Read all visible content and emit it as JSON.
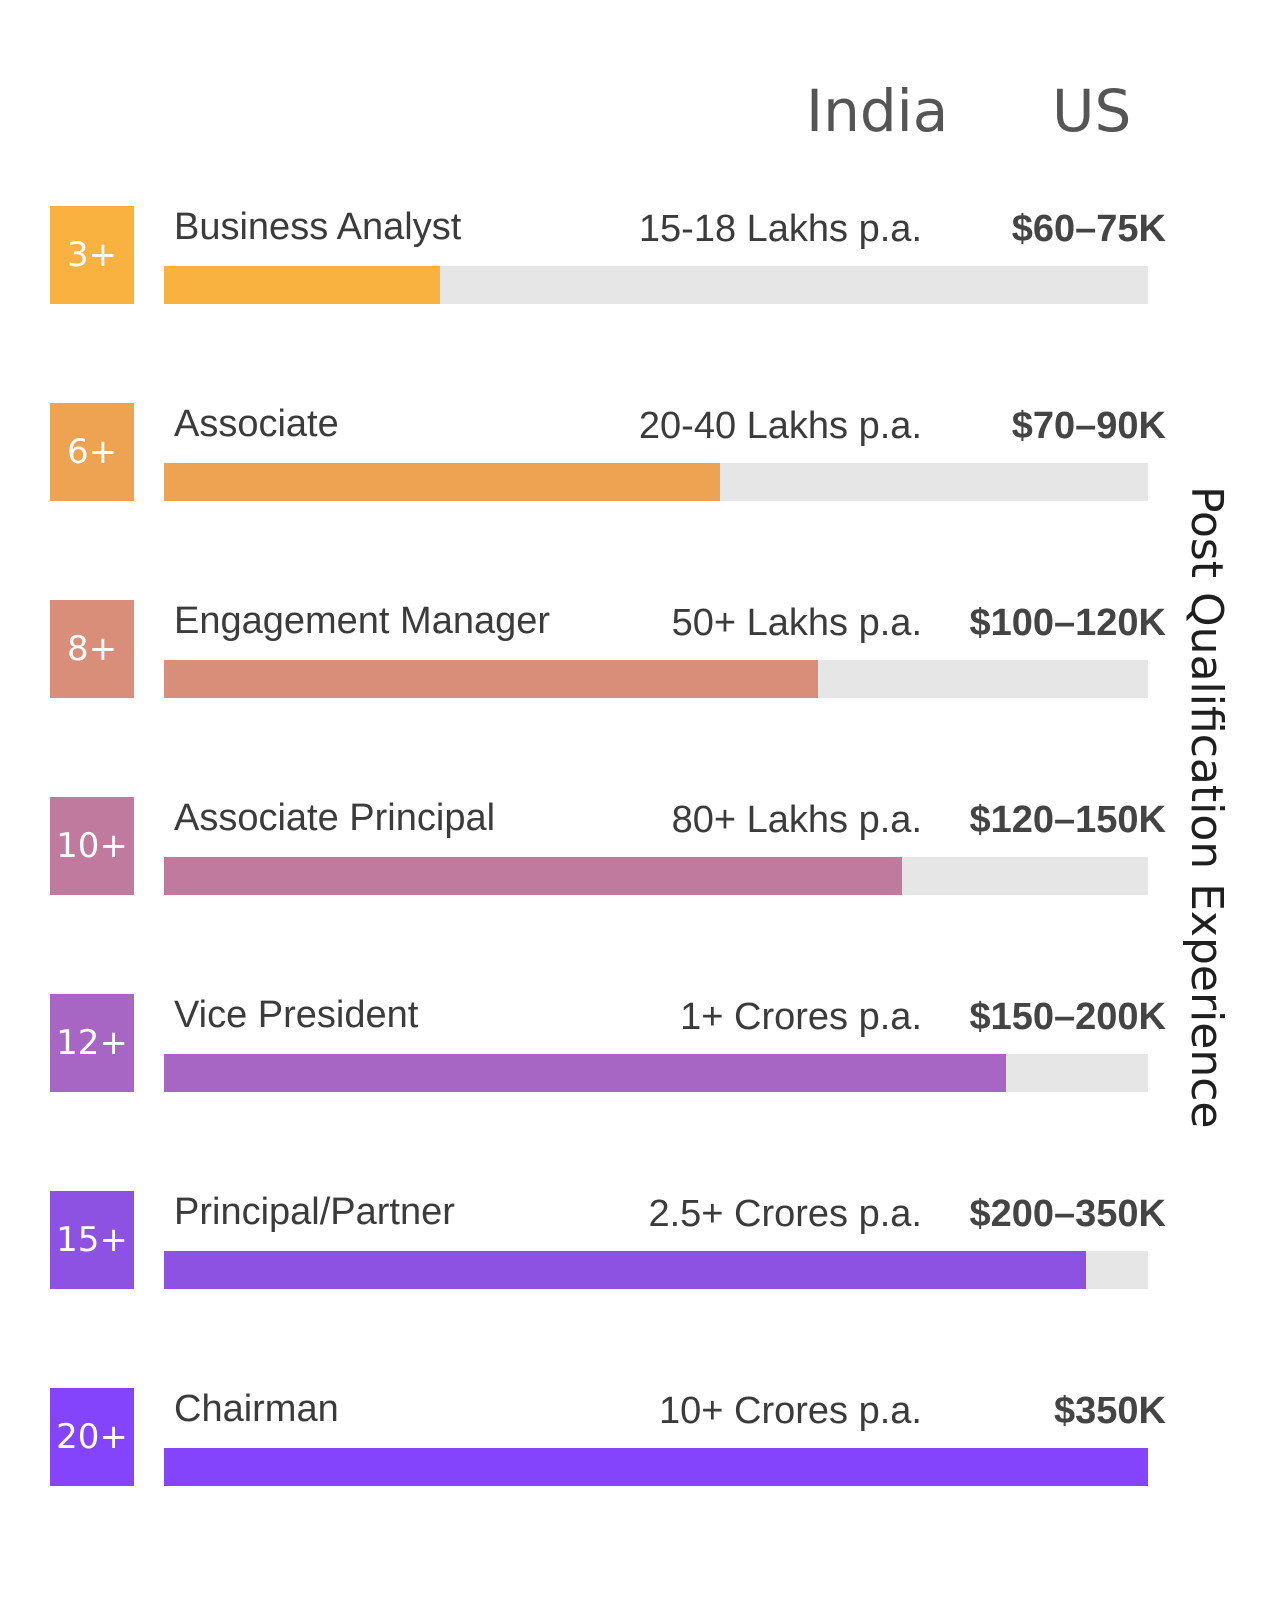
{
  "headers": {
    "india": "India",
    "us": "US"
  },
  "axis_label": "Post Qualification Experience",
  "chart_data": {
    "type": "bar",
    "orientation": "horizontal",
    "categories": [
      "Business Analyst",
      "Associate",
      "Engagement Manager",
      "Associate Principal",
      "Vice President",
      "Principal/Partner",
      "Chairman"
    ],
    "experience": [
      "3+",
      "6+",
      "8+",
      "10+",
      "12+",
      "15+",
      "20+"
    ],
    "india_salary": [
      "15-18 Lakhs p.a.",
      "20-40 Lakhs p.a.",
      "50+ Lakhs p.a.",
      "80+ Lakhs p.a.",
      "1+ Crores p.a.",
      "2.5+ Crores p.a.",
      "10+ Crores p.a."
    ],
    "us_salary": [
      "$60–75K",
      "$70–90K",
      "$100–120K",
      "$120–150K",
      "$150–200K",
      "$200–350K",
      "$350K"
    ],
    "values": [
      0.28,
      0.565,
      0.665,
      0.75,
      0.856,
      0.937,
      1.0
    ],
    "xlim": [
      0,
      1
    ],
    "colors": [
      "#f9b23f",
      "#eda352",
      "#d98e7a",
      "#c07a9e",
      "#a765c4",
      "#8e52e3",
      "#8444fb"
    ],
    "track_color": "#e6e6e6",
    "ylabel": "Post Qualification Experience"
  }
}
